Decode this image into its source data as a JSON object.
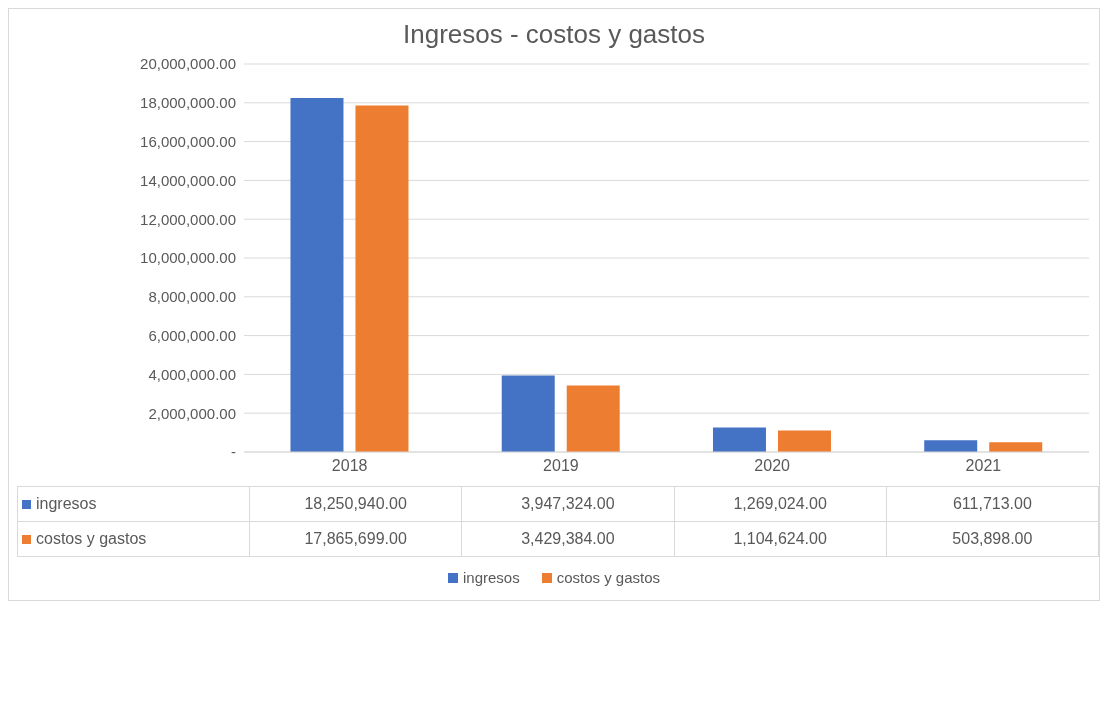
{
  "chart_data": {
    "type": "bar",
    "title": "Ingresos - costos y gastos",
    "categories": [
      "2018",
      "2019",
      "2020",
      "2021"
    ],
    "series": [
      {
        "name": "ingresos",
        "color": "#4472c4",
        "values": [
          18250940,
          3947324,
          1269024,
          611713
        ],
        "value_labels": [
          "18,250,940.00",
          "3,947,324.00",
          "1,269,024.00",
          "611,713.00"
        ]
      },
      {
        "name": "costos y gastos",
        "color": "#ed7d31",
        "values": [
          17865699,
          3429384,
          1104624,
          503898
        ],
        "value_labels": [
          "17,865,699.00",
          "3,429,384.00",
          "1,104,624.00",
          "503,898.00"
        ]
      }
    ],
    "ylim": [
      0,
      20000000
    ],
    "yticks": [
      {
        "value": 0,
        "label": "-"
      },
      {
        "value": 2000000,
        "label": "2,000,000.00"
      },
      {
        "value": 4000000,
        "label": "4,000,000.00"
      },
      {
        "value": 6000000,
        "label": "6,000,000.00"
      },
      {
        "value": 8000000,
        "label": "8,000,000.00"
      },
      {
        "value": 10000000,
        "label": "10,000,000.00"
      },
      {
        "value": 12000000,
        "label": "12,000,000.00"
      },
      {
        "value": 14000000,
        "label": "14,000,000.00"
      },
      {
        "value": 16000000,
        "label": "16,000,000.00"
      },
      {
        "value": 18000000,
        "label": "18,000,000.00"
      },
      {
        "value": 20000000,
        "label": "20,000,000.00"
      }
    ],
    "grid": "y",
    "legend": "bottom"
  }
}
